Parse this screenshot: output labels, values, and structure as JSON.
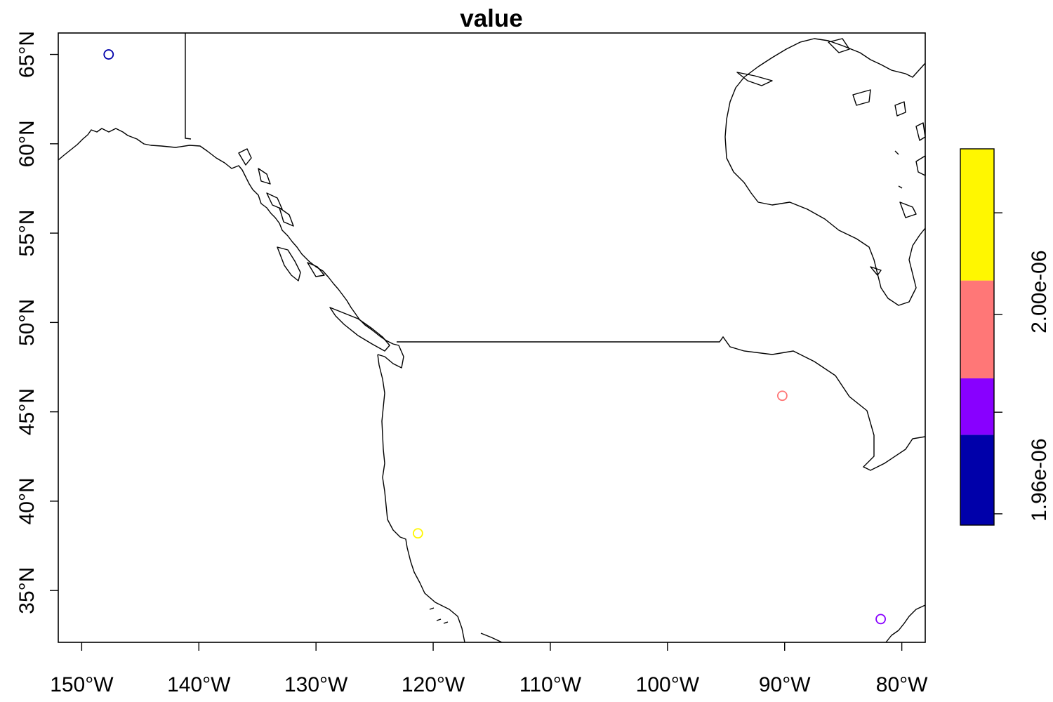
{
  "title": "value",
  "x_axis": {
    "ticks": [
      {
        "value": -150,
        "label": "150°W"
      },
      {
        "value": -140,
        "label": "140°W"
      },
      {
        "value": -130,
        "label": "130°W"
      },
      {
        "value": -120,
        "label": "120°W"
      },
      {
        "value": -110,
        "label": "110°W"
      },
      {
        "value": -100,
        "label": "100°W"
      },
      {
        "value": -90,
        "label": "90°W"
      },
      {
        "value": -80,
        "label": "80°W"
      }
    ]
  },
  "y_axis": {
    "ticks": [
      {
        "value": 35,
        "label": "35°N"
      },
      {
        "value": 40,
        "label": "40°N"
      },
      {
        "value": 45,
        "label": "45°N"
      },
      {
        "value": 50,
        "label": "50°N"
      },
      {
        "value": 55,
        "label": "55°N"
      },
      {
        "value": 60,
        "label": "60°N"
      },
      {
        "value": 65,
        "label": "65°N"
      }
    ]
  },
  "legend": {
    "colors": [
      "#0000AA",
      "#8800FF",
      "#FF7777",
      "#FFF700"
    ],
    "ticks": [
      {
        "label": "1.96e-06",
        "position": 0.12
      },
      {
        "label": "2.00e-06",
        "position": 0.62
      }
    ]
  },
  "chart_data": {
    "type": "scatter",
    "title": "value",
    "xlim": [
      -152,
      -78
    ],
    "ylim": [
      32.1,
      66.2
    ],
    "points": [
      {
        "lon": -147.7,
        "lat": 65.0,
        "color": "#0000AA"
      },
      {
        "lon": -90.2,
        "lat": 45.9,
        "color": "#FF7777"
      },
      {
        "lon": -121.3,
        "lat": 38.2,
        "color": "#FFF700"
      },
      {
        "lon": -81.8,
        "lat": 33.4,
        "color": "#8800FF"
      }
    ],
    "basemap": "coastlines and country borders",
    "grid": false
  }
}
